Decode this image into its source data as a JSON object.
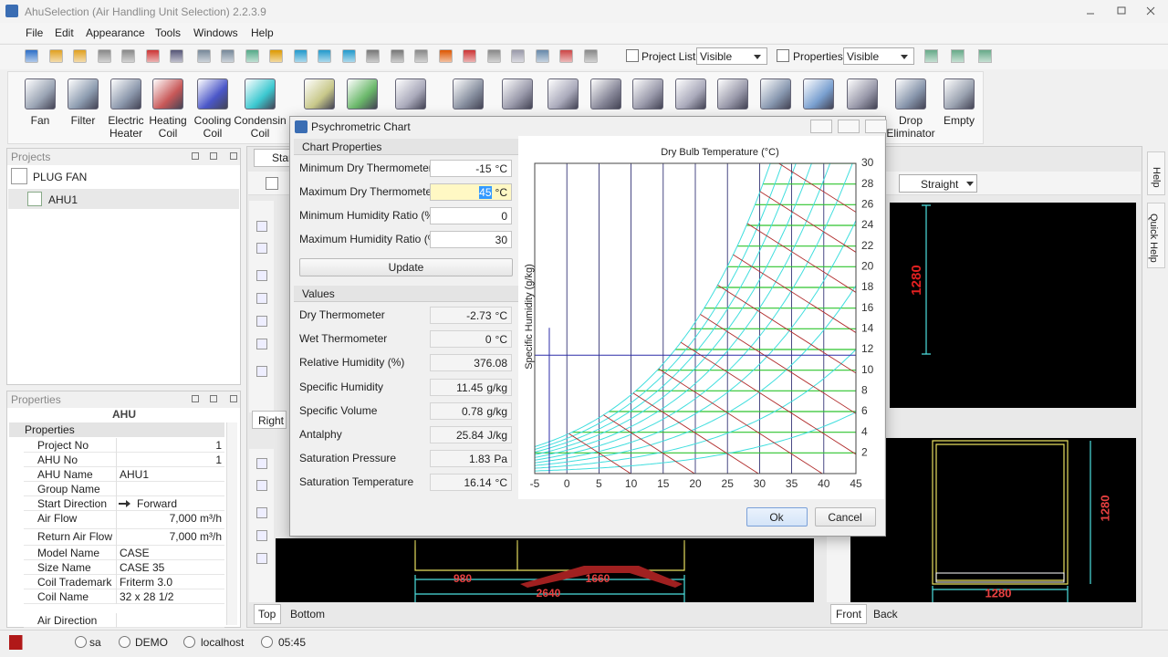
{
  "window": {
    "title": "AhuSelection (Air Handling Unit Selection) 2.2.3.9"
  },
  "menu": [
    "File",
    "Edit",
    "Appearance",
    "Tools",
    "Windows",
    "Help"
  ],
  "toolbar": {
    "project_list": {
      "label": "Project List",
      "value": "Visible"
    },
    "properties": {
      "label": "Properties",
      "value": "Visible"
    }
  },
  "ribbon": [
    "Fan",
    "Filter",
    "Electric Heater",
    "Heating Coil",
    "Cooling Coil",
    "Condensin Coil",
    "Drop Eliminator",
    "Empty"
  ],
  "projects": {
    "title": "Projects",
    "items": [
      "PLUG FAN",
      "AHU1"
    ]
  },
  "properties": {
    "title": "Properties",
    "object": "AHU",
    "group": "Properties",
    "rows": [
      {
        "label": "Project No",
        "value": "1"
      },
      {
        "label": "AHU No",
        "value": "1"
      },
      {
        "label": "AHU Name",
        "value": "AHU1"
      },
      {
        "label": "Group Name"
      },
      {
        "label": "Start Direction",
        "value": "Forward"
      },
      {
        "label": "Air Flow",
        "value": "7,000 m³/h"
      },
      {
        "label": "Return Air Flow",
        "value": "7,000 m³/h"
      },
      {
        "label": "Model Name",
        "value": "CASE"
      },
      {
        "label": "Size Name",
        "value": "CASE 35"
      },
      {
        "label": "Coil Trademark",
        "value": "Friterm 3.0"
      },
      {
        "label": "Coil Name",
        "value": "32 x 28 1/2"
      },
      {
        "label": "Air Direction"
      }
    ]
  },
  "documents": {
    "tabs": [
      "Star",
      "Right",
      "Top",
      "Bottom",
      "Front",
      "Back"
    ],
    "direction": "Straight",
    "dimensions": [
      "1280",
      "1280",
      "1280",
      "980",
      "1660",
      "2640"
    ]
  },
  "side_tabs": [
    "Help",
    "Quick Help"
  ],
  "status": {
    "user": "sa",
    "database": "DEMO",
    "server": "localhost",
    "time": "05:45"
  },
  "dialog": {
    "title": "Psychrometric Chart",
    "chart_properties": {
      "title": "Chart Properties",
      "fields": [
        {
          "label": "Minimum Dry Thermometer",
          "value": "-15",
          "unit": "°C"
        },
        {
          "label": "Maximum Dry Thermometer",
          "value": "45",
          "unit": "°C"
        },
        {
          "label": "Minimum Humidity Ratio (%)",
          "value": "0"
        },
        {
          "label": "Maximum Humidity Ratio (%)",
          "value": "30"
        }
      ],
      "button": "Update"
    },
    "values": {
      "title": "Values",
      "fields": [
        {
          "label": "Dry Thermometer",
          "value": "-2.73",
          "unit": "°C"
        },
        {
          "label": "Wet Thermometer",
          "value": "0",
          "unit": "°C"
        },
        {
          "label": "Relative Humidity (%)",
          "value": "376.08"
        },
        {
          "label": "Specific Humidity",
          "value": "11.45",
          "unit": "g/kg"
        },
        {
          "label": "Specific Volume",
          "value": "0.78",
          "unit": "g/kg"
        },
        {
          "label": "Antalphy",
          "value": "25.84",
          "unit": "J/kg"
        },
        {
          "label": "Saturation Pressure",
          "value": "1.83",
          "unit": "Pa"
        },
        {
          "label": "Saturation Temperature",
          "value": "16.14",
          "unit": "°C"
        }
      ]
    },
    "buttons": [
      "Ok",
      "Cancel"
    ]
  },
  "chart_data": {
    "type": "psychrometric",
    "x_title": "Dry Bulb Temperature (°C)",
    "y_title": "Specific Humidity (g/kg)",
    "xlim": [
      -5,
      45
    ],
    "ylim": [
      0,
      30
    ],
    "xticks": [
      -5,
      0,
      5,
      10,
      15,
      20,
      25,
      30,
      35,
      40,
      45
    ],
    "yticks": [
      2,
      4,
      6,
      8,
      10,
      12,
      14,
      16,
      18,
      20,
      22,
      24,
      26,
      28,
      30
    ],
    "rh_curves": [
      10,
      20,
      30,
      40,
      50,
      60,
      70,
      80,
      90,
      100
    ],
    "enthalpy_lines": [
      10,
      20,
      30,
      40,
      50,
      60,
      70,
      80,
      90,
      100,
      110
    ],
    "colors": {
      "rh": "#40dede",
      "humidity": "#2ec42e",
      "enthalpy": "#b02a2a",
      "grid": "#1c1c66",
      "marker": "#2c2ca8"
    }
  }
}
